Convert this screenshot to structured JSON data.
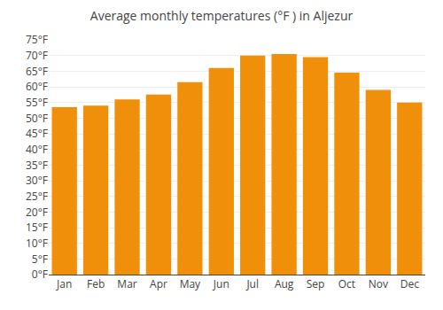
{
  "chart_data": {
    "type": "bar",
    "title": "Average monthly temperatures (°F ) in Aljezur",
    "categories": [
      "Jan",
      "Feb",
      "Mar",
      "Apr",
      "May",
      "Jun",
      "Jul",
      "Aug",
      "Sep",
      "Oct",
      "Nov",
      "Dec"
    ],
    "values": [
      53.5,
      54.0,
      56.0,
      57.5,
      61.5,
      66.0,
      70.0,
      70.5,
      69.5,
      64.5,
      59.0,
      55.0
    ],
    "color": "#F0900A",
    "ylim": [
      0,
      75
    ],
    "yticks": [
      {
        "value": 0,
        "label": "0°F"
      },
      {
        "value": 5,
        "label": "5°F"
      },
      {
        "value": 10,
        "label": "10°F"
      },
      {
        "value": 15,
        "label": "15°F"
      },
      {
        "value": 20,
        "label": "20°F"
      },
      {
        "value": 25,
        "label": "25°F"
      },
      {
        "value": 30,
        "label": "30°F"
      },
      {
        "value": 35,
        "label": "35°F"
      },
      {
        "value": 40,
        "label": "40°F"
      },
      {
        "value": 45,
        "label": "45°F"
      },
      {
        "value": 50,
        "label": "50°F"
      },
      {
        "value": 55,
        "label": "55°F"
      },
      {
        "value": 60,
        "label": "60°F"
      },
      {
        "value": 65,
        "label": "65°F"
      },
      {
        "value": 70,
        "label": "70°F"
      },
      {
        "value": 75,
        "label": "75°F"
      }
    ],
    "grid": true
  }
}
